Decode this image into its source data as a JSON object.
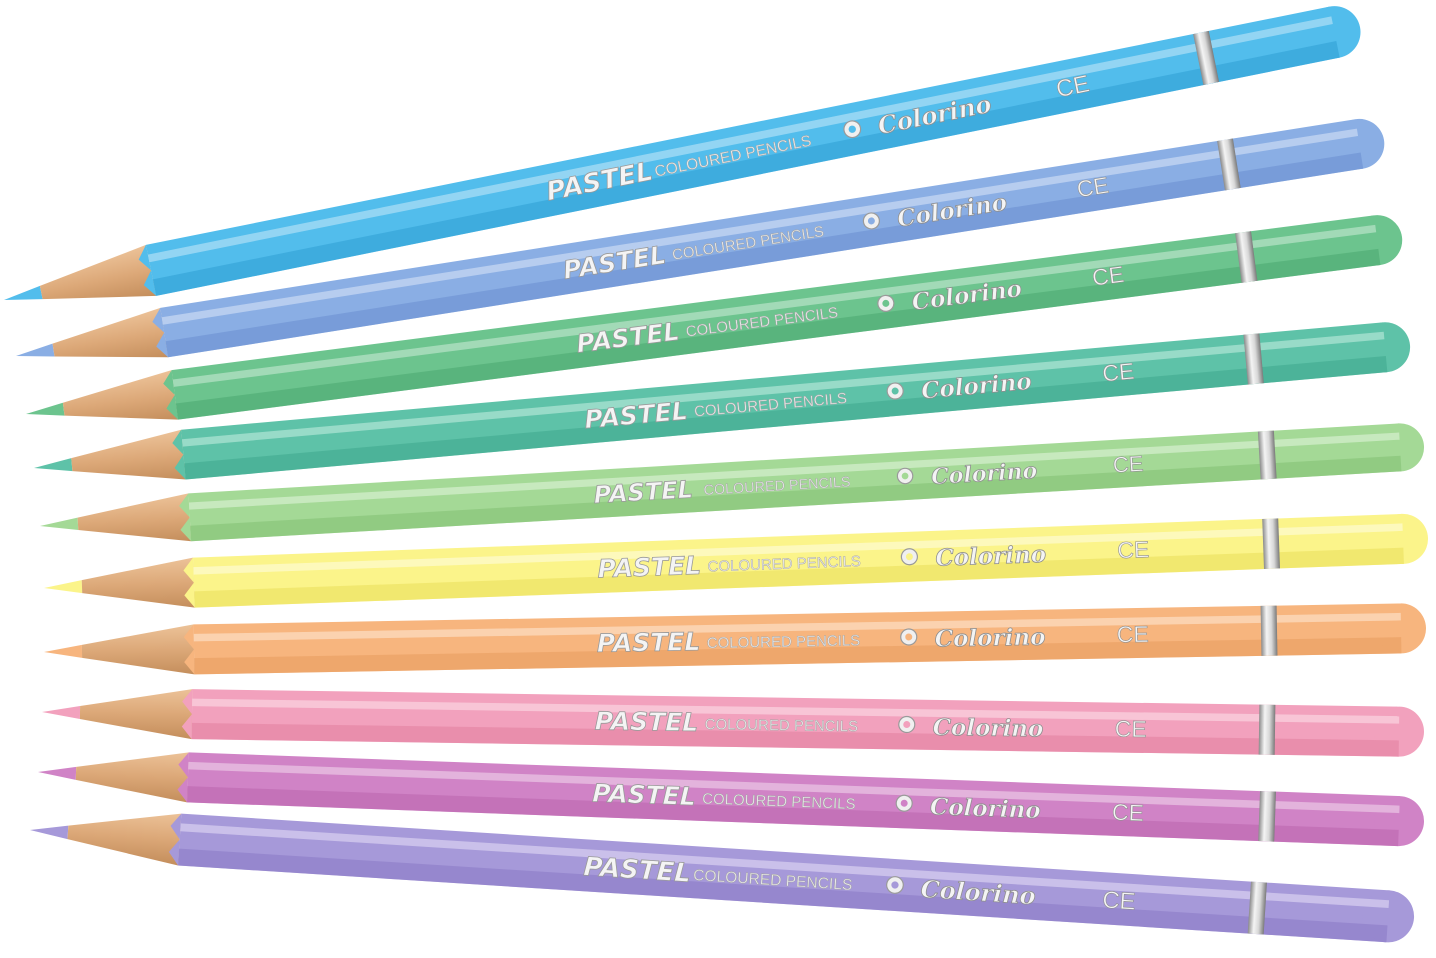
{
  "product": {
    "brand_word": "PASTEL",
    "label": "COLOURED PENCILS",
    "logo": "Colorino",
    "mark": "CE"
  },
  "pencils": [
    {
      "color": "#52bdec",
      "shade": "#2d9fd4",
      "light": "#a9def6"
    },
    {
      "color": "#8aaee4",
      "shade": "#6a8ed0",
      "light": "#c6d7f3"
    },
    {
      "color": "#6cc48e",
      "shade": "#4aa870",
      "light": "#b4e2c4"
    },
    {
      "color": "#5ec2a8",
      "shade": "#3ea88c",
      "light": "#ace3d3"
    },
    {
      "color": "#a4d996",
      "shade": "#82c072",
      "light": "#d3eecb"
    },
    {
      "color": "#fbf48a",
      "shade": "#eadf5a",
      "light": "#fefbcc"
    },
    {
      "color": "#f7b57e",
      "shade": "#e89a5c",
      "light": "#fcdcc0"
    },
    {
      "color": "#f2a1bd",
      "shade": "#e17f9f",
      "light": "#f9d2df"
    },
    {
      "color": "#d083c6",
      "shade": "#b964ad",
      "light": "#e9c3e3"
    },
    {
      "color": "#a699d9",
      "shade": "#8979c5",
      "light": "#d5cdef"
    }
  ]
}
